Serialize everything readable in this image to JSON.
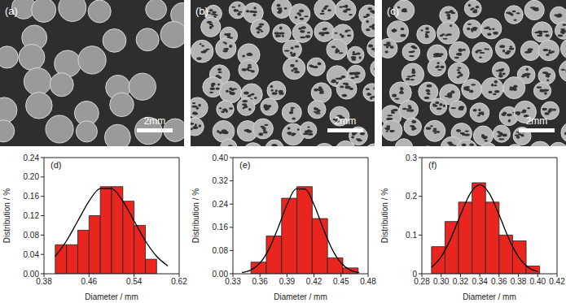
{
  "images": [
    {
      "label": "(a)",
      "scale_bar": "2mm"
    },
    {
      "label": "(b)",
      "scale_bar": "2mm"
    },
    {
      "label": "(c)",
      "scale_bar": "2mm"
    }
  ],
  "chart_data": [
    {
      "type": "histogram",
      "annotations": [
        "(d)"
      ],
      "x_label": "Diameter / mm",
      "y_label": "Distribution / %",
      "bins": [
        0.4,
        0.42,
        0.44,
        0.46,
        0.48,
        0.5,
        0.52,
        0.54,
        0.56,
        0.58
      ],
      "counts": [
        0.06,
        0.06,
        0.09,
        0.12,
        0.18,
        0.18,
        0.15,
        0.1,
        0.03
      ],
      "color": "#e8261f",
      "xlim": [
        0.38,
        0.62
      ],
      "xticks": [
        0.38,
        0.46,
        0.54,
        0.62
      ],
      "ylim": [
        0,
        0.24
      ],
      "yticks": [
        {
          "value": 0,
          "label": "0.00"
        },
        0.04,
        0.08,
        0.12,
        0.16,
        {
          "value": 0.2,
          "label": "0.20"
        },
        0.24
      ],
      "series": [
        {
          "type": "line",
          "color": "#000000",
          "x": [
            0.4,
            0.42,
            0.44,
            0.46,
            0.48,
            0.5,
            0.52,
            0.54,
            0.56,
            0.58,
            0.6
          ],
          "values": [
            0.036,
            0.068,
            0.109,
            0.15,
            0.176,
            0.176,
            0.15,
            0.109,
            0.068,
            0.036,
            0.016
          ]
        }
      ]
    },
    {
      "type": "histogram",
      "annotations": [
        "(e)"
      ],
      "x_label": "Diameter / mm",
      "y_label": "Distribution / %",
      "bins": [
        0.35,
        0.367,
        0.384,
        0.401,
        0.418,
        0.435,
        0.452,
        0.469
      ],
      "counts": [
        0.04,
        0.13,
        0.26,
        0.3,
        0.19,
        0.055,
        0.02
      ],
      "color": "#e8261f",
      "xlim": [
        0.33,
        0.48
      ],
      "xticks": [
        0.33,
        0.36,
        0.39,
        0.42,
        0.45,
        0.48
      ],
      "ylim": [
        0,
        0.4
      ],
      "yticks": [
        {
          "value": 0,
          "label": "0.00"
        },
        0.08,
        0.16,
        0.24,
        0.32,
        {
          "value": 0.4,
          "label": "0.40"
        }
      ],
      "series": [
        {
          "type": "line",
          "color": "#000000",
          "x": [
            0.34,
            0.35,
            0.36,
            0.37,
            0.38,
            0.39,
            0.4,
            0.41,
            0.42,
            0.43,
            0.44,
            0.45,
            0.46,
            0.47
          ],
          "values": [
            0.004,
            0.013,
            0.037,
            0.085,
            0.157,
            0.238,
            0.292,
            0.292,
            0.238,
            0.157,
            0.085,
            0.037,
            0.013,
            0.004
          ]
        }
      ]
    },
    {
      "type": "histogram",
      "annotations": [
        "(f)"
      ],
      "x_label": "Diameter / mm",
      "y_label": "Distribution / %",
      "bins": [
        0.29,
        0.304,
        0.318,
        0.332,
        0.346,
        0.36,
        0.374,
        0.388,
        0.402
      ],
      "counts": [
        0.07,
        0.135,
        0.185,
        0.235,
        0.185,
        0.1,
        0.085,
        0.02
      ],
      "color": "#e8261f",
      "xlim": [
        0.28,
        0.42
      ],
      "xticks": [
        0.28,
        {
          "value": 0.3,
          "label": "0.30"
        },
        0.32,
        0.34,
        0.36,
        0.38,
        {
          "value": 0.4,
          "label": "0.40"
        },
        0.42
      ],
      "ylim": [
        0,
        0.3
      ],
      "yticks": [
        0,
        0.1,
        0.2,
        0.3
      ],
      "series": [
        {
          "type": "line",
          "color": "#000000",
          "x": [
            0.29,
            0.3,
            0.31,
            0.32,
            0.33,
            0.34,
            0.35,
            0.36,
            0.37,
            0.38,
            0.39,
            0.4
          ],
          "values": [
            0.017,
            0.044,
            0.091,
            0.152,
            0.207,
            0.23,
            0.207,
            0.152,
            0.091,
            0.044,
            0.017,
            0.006
          ]
        }
      ]
    }
  ]
}
